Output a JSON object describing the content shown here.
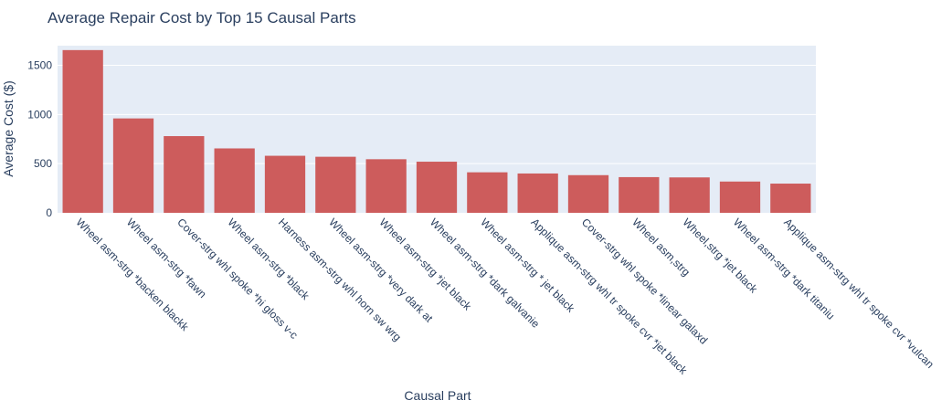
{
  "chart_data": {
    "type": "bar",
    "title": "Average Repair Cost by Top 15 Causal Parts",
    "xlabel": "Causal Part",
    "ylabel": "Average Cost ($)",
    "ylim": [
      0,
      1700
    ],
    "yticks": [
      0,
      500,
      1000,
      1500
    ],
    "grid": true,
    "categories": [
      "Wheel asm-strg *backen blackk",
      "Wheel asm-strg *fawn",
      "Cover-strg whl spoke *hi gloss v-c",
      "Wheel asm-strg *black",
      "Harness asm-strg whl horn sw wrg",
      "Wheel asm-strg *very dark at",
      "Wheel asm-strg *jet black",
      "Wheel asm-strg *dark galvanie",
      "Wheel asm-strg * jet black",
      "Applique asm-strg whl tr spoke cvr *jet black",
      "Cover-strg whl spoke *linear galaxd",
      "Wheel asm,strg",
      "Wheel,strg *jet black",
      "Wheel asm-strg *dark titaniu",
      "Applique asm-strg whl tr spoke cvr *vulcan"
    ],
    "values": [
      1655,
      960,
      780,
      655,
      580,
      570,
      545,
      520,
      412,
      400,
      383,
      363,
      360,
      318,
      297
    ],
    "colors": {
      "bar": "#cd5c5c",
      "plot_bg": "#e5ecf6",
      "grid": "#ffffff",
      "text": "#2a3f5f"
    }
  }
}
